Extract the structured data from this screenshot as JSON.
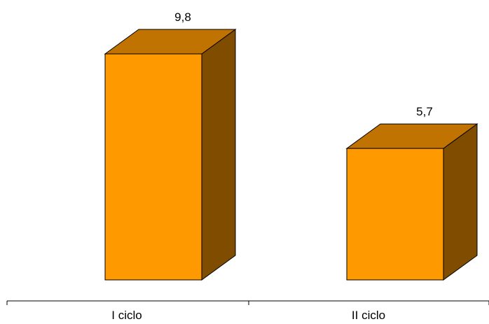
{
  "chart_data": {
    "type": "bar",
    "style": "3d",
    "title": "",
    "xlabel": "",
    "ylabel": "",
    "categories": [
      "I ciclo",
      "II ciclo"
    ],
    "values": [
      9.8,
      5.7
    ],
    "data_labels": [
      "9,8",
      "5,7"
    ],
    "ylim": [
      0,
      9.8
    ],
    "grid": false,
    "legend": "none",
    "colors": {
      "front": "#FF9900",
      "top": "#C07300",
      "side": "#7F4C00",
      "outline": "#000000",
      "axis": "#000000"
    }
  }
}
